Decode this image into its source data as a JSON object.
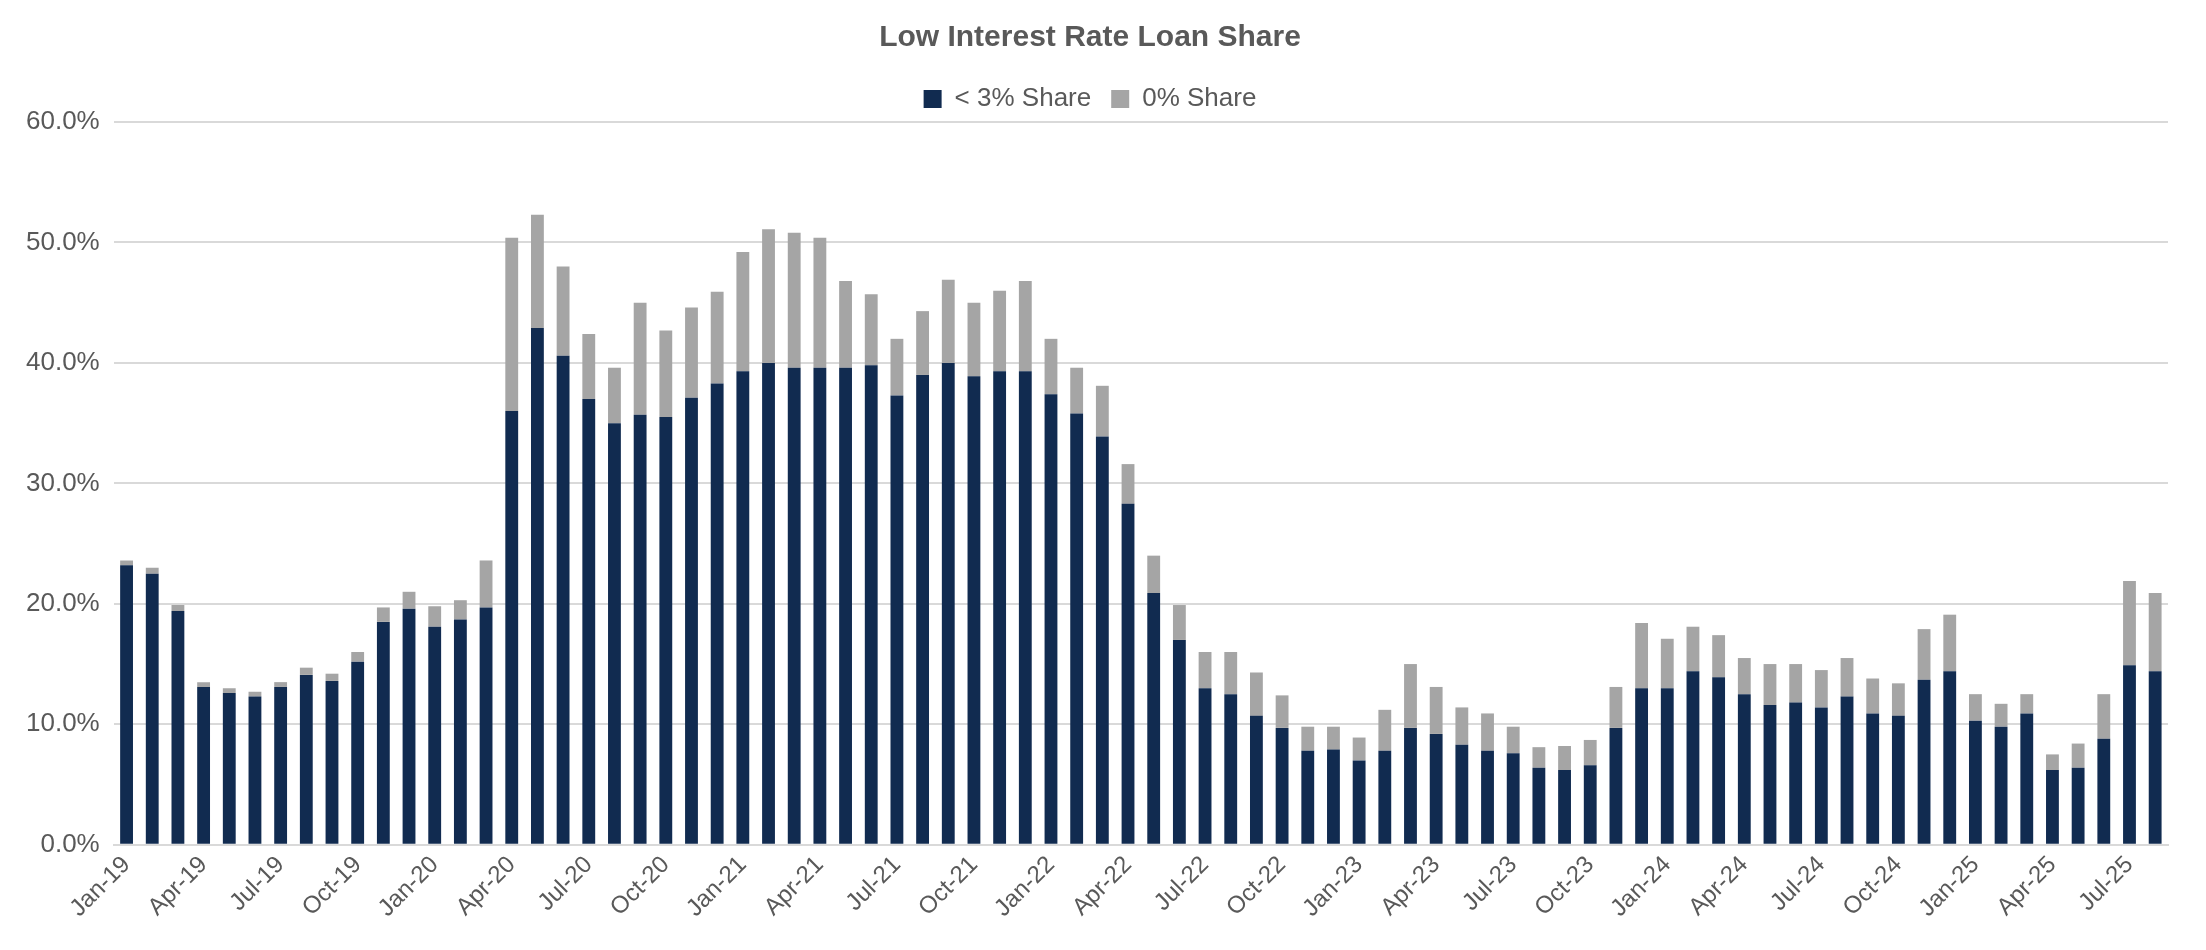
{
  "chart_data": {
    "type": "bar",
    "title": "Low Interest Rate Loan Share",
    "stacked": true,
    "legend": "top",
    "grid": "y",
    "categories": [
      "Jan-19",
      null,
      null,
      "Apr-19",
      null,
      null,
      "Jul-19",
      null,
      null,
      "Oct-19",
      null,
      null,
      "Jan-20",
      null,
      null,
      "Apr-20",
      null,
      null,
      "Jul-20",
      null,
      null,
      "Oct-20",
      null,
      null,
      "Jan-21",
      null,
      null,
      "Apr-21",
      null,
      null,
      "Jul-21",
      null,
      null,
      "Oct-21",
      null,
      null,
      "Jan-22",
      null,
      null,
      "Apr-22",
      null,
      null,
      "Jul-22",
      null,
      null,
      "Oct-22",
      null,
      null,
      "Jan-23",
      null,
      null,
      "Apr-23",
      null,
      null,
      "Jul-23",
      null,
      null,
      "Oct-23",
      null,
      null,
      "Jan-24",
      null,
      null,
      "Apr-24",
      null,
      null,
      "Jul-24",
      null,
      null,
      "Oct-24",
      null,
      null,
      "Jan-25",
      null,
      null,
      "Apr-25",
      null,
      null,
      "Jul-25",
      null
    ],
    "series": [
      {
        "name": "< 3% Share",
        "color": "#112b50",
        "values": [
          23.2,
          22.5,
          19.4,
          13.1,
          12.6,
          12.3,
          13.1,
          14.1,
          13.6,
          15.2,
          18.5,
          19.6,
          18.1,
          18.7,
          19.7,
          36.0,
          42.9,
          40.6,
          37.0,
          35.0,
          35.7,
          35.5,
          37.1,
          38.3,
          39.3,
          40.0,
          39.6,
          39.6,
          39.6,
          39.8,
          37.3,
          39.0,
          40.0,
          38.9,
          39.3,
          39.3,
          37.4,
          35.8,
          33.9,
          28.3,
          20.9,
          17.0,
          13.0,
          12.5,
          10.7,
          9.7,
          7.8,
          7.9,
          7.0,
          7.8,
          9.7,
          9.2,
          8.3,
          7.8,
          7.6,
          6.4,
          6.2,
          6.6,
          9.7,
          13.0,
          13.0,
          14.4,
          13.9,
          12.5,
          11.6,
          11.8,
          11.4,
          12.3,
          10.9,
          10.7,
          13.7,
          14.4,
          10.3,
          9.8,
          10.9,
          6.2,
          6.4,
          8.8,
          14.9,
          14.4
        ]
      },
      {
        "name": "0% Share",
        "color": "#a5a5a5",
        "values": [
          0.4,
          0.5,
          0.5,
          0.4,
          0.4,
          0.4,
          0.4,
          0.6,
          0.6,
          0.8,
          1.2,
          1.4,
          1.7,
          1.6,
          3.9,
          14.4,
          9.4,
          7.4,
          5.4,
          4.6,
          9.3,
          7.2,
          7.5,
          7.6,
          9.9,
          11.1,
          11.2,
          10.8,
          7.2,
          5.9,
          4.7,
          5.3,
          6.9,
          6.1,
          6.7,
          7.5,
          4.6,
          3.8,
          4.2,
          3.3,
          3.1,
          2.9,
          3.0,
          3.5,
          3.6,
          2.7,
          2.0,
          1.9,
          1.9,
          3.4,
          5.3,
          3.9,
          3.1,
          3.1,
          2.2,
          1.7,
          2.0,
          2.1,
          3.4,
          5.4,
          4.1,
          3.7,
          3.5,
          3.0,
          3.4,
          3.2,
          3.1,
          3.2,
          2.9,
          2.7,
          4.2,
          4.7,
          2.2,
          1.9,
          1.6,
          1.3,
          2.0,
          3.7,
          7.0,
          6.5
        ]
      }
    ],
    "ylim": [
      0,
      60
    ],
    "yticks": [
      {
        "value": 0,
        "label": "0.0%"
      },
      {
        "value": 10,
        "label": "10.0%"
      },
      {
        "value": 20,
        "label": "20.0%"
      },
      {
        "value": 30,
        "label": "30.0%"
      },
      {
        "value": 40,
        "label": "40.0%"
      },
      {
        "value": 50,
        "label": "50.0%"
      },
      {
        "value": 60,
        "label": "60.0%"
      }
    ]
  }
}
